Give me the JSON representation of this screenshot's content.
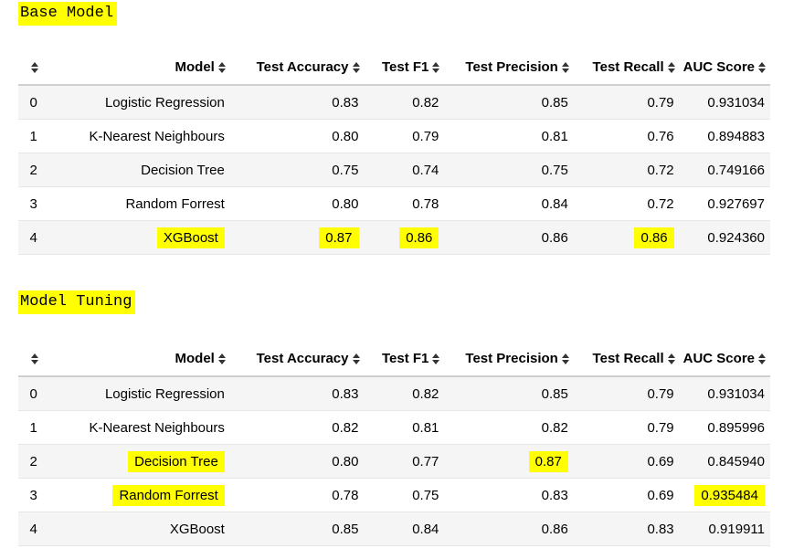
{
  "colors": {
    "highlight": "#ffff00",
    "row_stripe": "#f5f5f5"
  },
  "icons": {
    "sort": "sort-arrows-icon"
  },
  "columns": [
    "Model",
    "Test Accuracy",
    "Test F1",
    "Test Precision",
    "Test Recall",
    "AUC Score"
  ],
  "base_model": {
    "title": "Base Model",
    "rows": [
      {
        "index": "0",
        "model": "Logistic Regression",
        "accuracy": "0.83",
        "f1": "0.82",
        "precision": "0.85",
        "recall": "0.79",
        "auc": "0.931034"
      },
      {
        "index": "1",
        "model": "K-Nearest Neighbours",
        "accuracy": "0.80",
        "f1": "0.79",
        "precision": "0.81",
        "recall": "0.76",
        "auc": "0.894883"
      },
      {
        "index": "2",
        "model": "Decision Tree",
        "accuracy": "0.75",
        "f1": "0.74",
        "precision": "0.75",
        "recall": "0.72",
        "auc": "0.749166"
      },
      {
        "index": "3",
        "model": "Random Forrest",
        "accuracy": "0.80",
        "f1": "0.78",
        "precision": "0.84",
        "recall": "0.72",
        "auc": "0.927697"
      },
      {
        "index": "4",
        "model": "XGBoost",
        "accuracy": "0.87",
        "f1": "0.86",
        "precision": "0.86",
        "recall": "0.86",
        "auc": "0.924360"
      }
    ]
  },
  "model_tuning": {
    "title": "Model Tuning",
    "rows": [
      {
        "index": "0",
        "model": "Logistic Regression",
        "accuracy": "0.83",
        "f1": "0.82",
        "precision": "0.85",
        "recall": "0.79",
        "auc": "0.931034"
      },
      {
        "index": "1",
        "model": "K-Nearest Neighbours",
        "accuracy": "0.82",
        "f1": "0.81",
        "precision": "0.82",
        "recall": "0.79",
        "auc": "0.895996"
      },
      {
        "index": "2",
        "model": "Decision Tree",
        "accuracy": "0.80",
        "f1": "0.77",
        "precision": "0.87",
        "recall": "0.69",
        "auc": "0.845940"
      },
      {
        "index": "3",
        "model": "Random Forrest",
        "accuracy": "0.78",
        "f1": "0.75",
        "precision": "0.83",
        "recall": "0.69",
        "auc": "0.935484"
      },
      {
        "index": "4",
        "model": "XGBoost",
        "accuracy": "0.85",
        "f1": "0.84",
        "precision": "0.86",
        "recall": "0.83",
        "auc": "0.919911"
      }
    ]
  }
}
